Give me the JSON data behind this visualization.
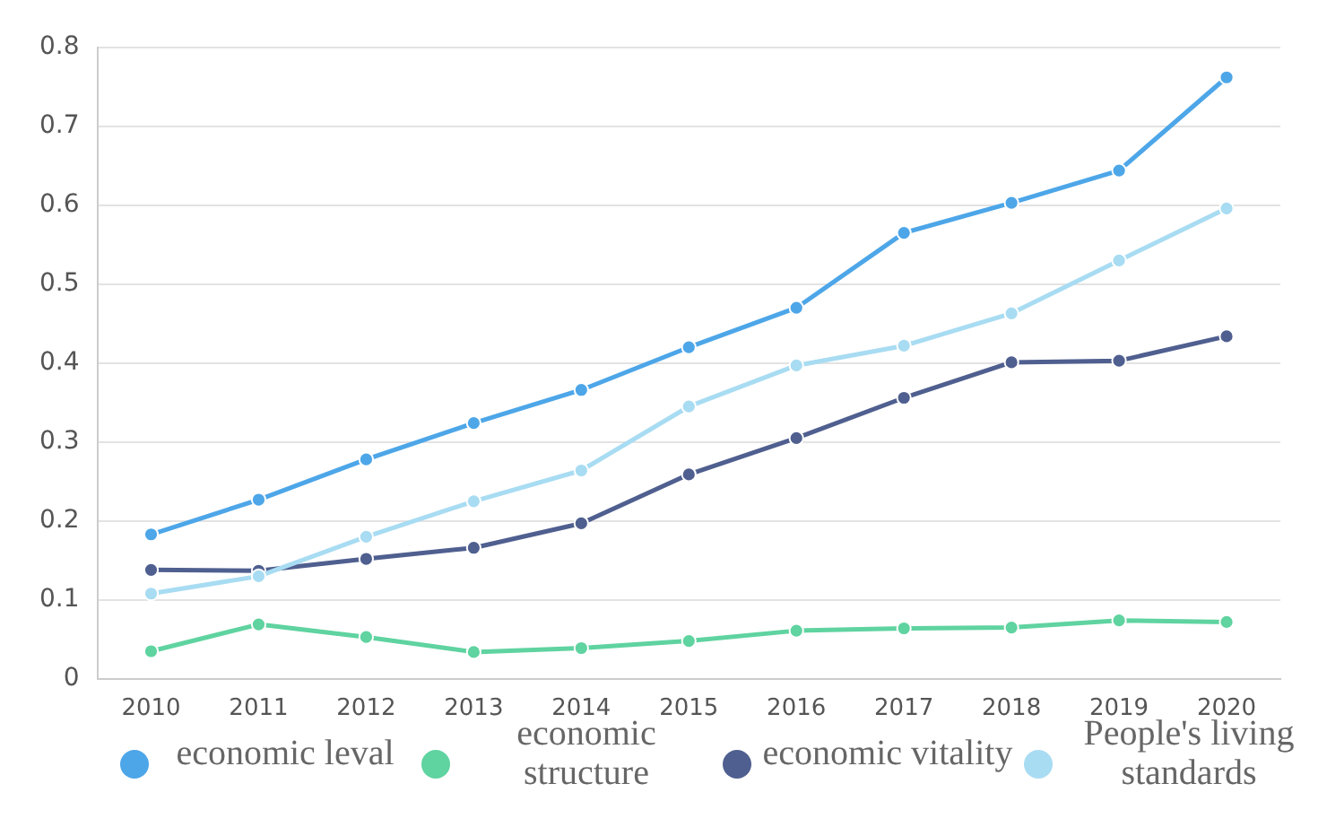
{
  "chart_data": {
    "type": "line",
    "categories": [
      "2010",
      "2011",
      "2012",
      "2013",
      "2014",
      "2015",
      "2016",
      "2017",
      "2018",
      "2019",
      "2020"
    ],
    "series": [
      {
        "name": "economic leval",
        "color": "#4da6e8",
        "values": [
          0.183,
          0.227,
          0.278,
          0.324,
          0.366,
          0.42,
          0.47,
          0.565,
          0.603,
          0.644,
          0.762
        ]
      },
      {
        "name": "economic structure",
        "color": "#5fd3a0",
        "values": [
          0.035,
          0.069,
          0.053,
          0.034,
          0.039,
          0.048,
          0.061,
          0.064,
          0.065,
          0.074,
          0.072
        ]
      },
      {
        "name": "economic vitality",
        "color": "#4f5f8f",
        "values": [
          0.138,
          0.137,
          0.152,
          0.166,
          0.197,
          0.259,
          0.305,
          0.356,
          0.401,
          0.403,
          0.434
        ]
      },
      {
        "name": "People's living standards",
        "color": "#a8dcf2",
        "values": [
          0.108,
          0.13,
          0.18,
          0.225,
          0.264,
          0.345,
          0.397,
          0.422,
          0.463,
          0.53,
          0.596
        ]
      }
    ],
    "ylim": [
      0,
      0.8
    ],
    "yticks": [
      0,
      0.1,
      0.2,
      0.3,
      0.4,
      0.5,
      0.6,
      0.7,
      0.8
    ],
    "grid": "y",
    "legend": "bottom",
    "marker": "circle",
    "line_style": "solid"
  }
}
